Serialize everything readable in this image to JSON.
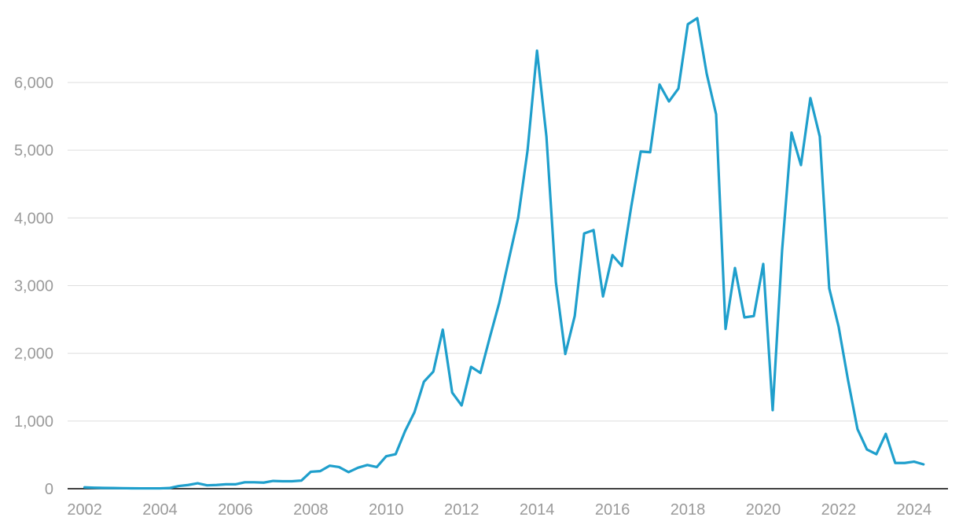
{
  "chart_data": {
    "type": "line",
    "title": "",
    "xlabel": "",
    "ylabel": "",
    "xlim": [
      2001.55,
      2024.9
    ],
    "ylim": [
      0,
      7000
    ],
    "grid": true,
    "legend": "none",
    "colors": {
      "line": "#1f9fcc",
      "grid": "#dedede",
      "baseline": "#000000",
      "tick_text": "#9a9a9a"
    },
    "x_ticks": [
      {
        "value": 2002,
        "label": "2002"
      },
      {
        "value": 2004,
        "label": "2004"
      },
      {
        "value": 2006,
        "label": "2006"
      },
      {
        "value": 2008,
        "label": "2008"
      },
      {
        "value": 2010,
        "label": "2010"
      },
      {
        "value": 2012,
        "label": "2012"
      },
      {
        "value": 2014,
        "label": "2014"
      },
      {
        "value": 2016,
        "label": "2016"
      },
      {
        "value": 2018,
        "label": "2018"
      },
      {
        "value": 2020,
        "label": "2020"
      },
      {
        "value": 2022,
        "label": "2022"
      },
      {
        "value": 2024,
        "label": "2024"
      }
    ],
    "y_ticks": [
      {
        "value": 0,
        "label": "0"
      },
      {
        "value": 1000,
        "label": "1,000"
      },
      {
        "value": 2000,
        "label": "2,000"
      },
      {
        "value": 3000,
        "label": "3,000"
      },
      {
        "value": 4000,
        "label": "4,000"
      },
      {
        "value": 5000,
        "label": "5,000"
      },
      {
        "value": 6000,
        "label": "6,000"
      }
    ],
    "series": [
      {
        "x": [
          2002.0,
          2002.25,
          2002.5,
          2002.75,
          2003.0,
          2003.25,
          2003.5,
          2003.75,
          2004.0,
          2004.25,
          2004.5,
          2004.75,
          2005.0,
          2005.25,
          2005.5,
          2005.75,
          2006.0,
          2006.25,
          2006.5,
          2006.75,
          2007.0,
          2007.25,
          2007.5,
          2007.75,
          2008.0,
          2008.25,
          2008.5,
          2008.75,
          2009.0,
          2009.25,
          2009.5,
          2009.75,
          2010.0,
          2010.25,
          2010.5,
          2010.75,
          2011.0,
          2011.25,
          2011.5,
          2011.75,
          2012.0,
          2012.25,
          2012.5,
          2012.75,
          2013.0,
          2013.25,
          2013.5,
          2013.75,
          2014.0,
          2014.25,
          2014.5,
          2014.75,
          2015.0,
          2015.25,
          2015.5,
          2015.75,
          2016.0,
          2016.25,
          2016.5,
          2016.75,
          2017.0,
          2017.25,
          2017.5,
          2017.75,
          2018.0,
          2018.25,
          2018.5,
          2018.75,
          2019.0,
          2019.25,
          2019.5,
          2019.75,
          2020.0,
          2020.25,
          2020.5,
          2020.75,
          2021.0,
          2021.25,
          2021.5,
          2021.75,
          2022.0,
          2022.25,
          2022.5,
          2022.75,
          2023.0,
          2023.25,
          2023.5,
          2023.75,
          2024.0,
          2024.25
        ],
        "values": [
          20,
          15,
          12,
          10,
          8,
          6,
          5,
          5,
          5,
          10,
          40,
          55,
          80,
          50,
          55,
          65,
          65,
          95,
          95,
          90,
          115,
          110,
          110,
          120,
          250,
          260,
          340,
          320,
          245,
          310,
          350,
          320,
          480,
          510,
          850,
          1130,
          1580,
          1730,
          2350,
          1420,
          1230,
          1800,
          1710,
          2240,
          2750,
          3380,
          4000,
          5000,
          6470,
          5200,
          3050,
          1990,
          2550,
          3770,
          3820,
          2840,
          3450,
          3290,
          4170,
          4980,
          4970,
          5970,
          5720,
          5910,
          6860,
          6950,
          6130,
          5530,
          2360,
          3260,
          2530,
          2550,
          3320,
          1160,
          3520,
          5260,
          4780,
          5770,
          5200,
          2960,
          2390,
          1600,
          880,
          580,
          510,
          810,
          380,
          380,
          400,
          360
        ]
      }
    ]
  }
}
